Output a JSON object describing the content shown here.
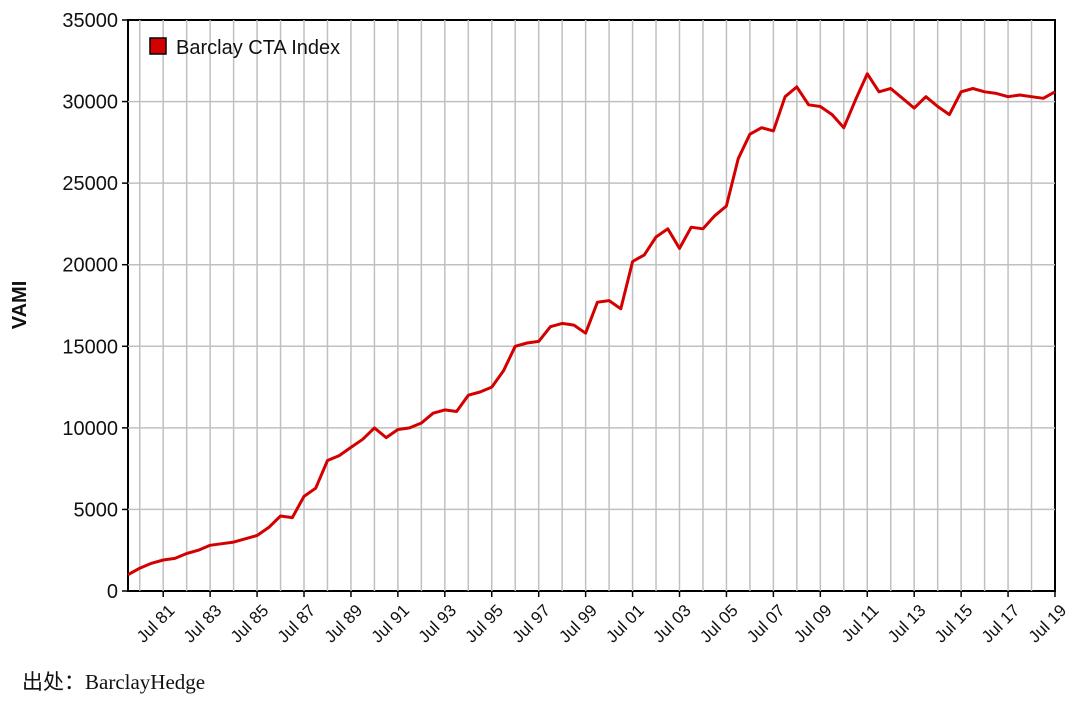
{
  "chart_data": {
    "type": "line",
    "ylabel": "VAMI",
    "ylim": [
      0,
      35000
    ],
    "yticks": [
      "0",
      "5000",
      "10000",
      "15000",
      "20000",
      "25000",
      "30000",
      "35000"
    ],
    "xticks": [
      "Jul 81",
      "Jul 83",
      "Jul 85",
      "Jul 87",
      "Jul 89",
      "Jul 91",
      "Jul 93",
      "Jul 95",
      "Jul 97",
      "Jul 99",
      "Jul 01",
      "Jul 03",
      "Jul 05",
      "Jul 07",
      "Jul 09",
      "Jul 11",
      "Jul 13",
      "Jul 15",
      "Jul 17",
      "Jul 19"
    ],
    "grid": true,
    "legend_position": "top-left",
    "series": [
      {
        "name": "Barclay CTA Index",
        "color": "#d40000",
        "x": [
          "1980-01",
          "1980-07",
          "1981-01",
          "1981-07",
          "1982-01",
          "1982-07",
          "1983-01",
          "1983-07",
          "1984-01",
          "1984-07",
          "1985-01",
          "1985-07",
          "1986-01",
          "1986-07",
          "1987-01",
          "1987-07",
          "1988-01",
          "1988-07",
          "1989-01",
          "1989-07",
          "1990-01",
          "1990-07",
          "1991-01",
          "1991-07",
          "1992-01",
          "1992-07",
          "1993-01",
          "1993-07",
          "1994-01",
          "1994-07",
          "1995-01",
          "1995-07",
          "1996-01",
          "1996-07",
          "1997-01",
          "1997-07",
          "1998-01",
          "1998-07",
          "1999-01",
          "1999-07",
          "2000-01",
          "2000-07",
          "2001-01",
          "2001-07",
          "2002-01",
          "2002-07",
          "2003-01",
          "2003-07",
          "2004-01",
          "2004-07",
          "2005-01",
          "2005-07",
          "2006-01",
          "2006-07",
          "2007-01",
          "2007-07",
          "2008-01",
          "2008-07",
          "2009-01",
          "2009-07",
          "2010-01",
          "2010-07",
          "2011-01",
          "2011-07",
          "2012-01",
          "2012-07",
          "2013-01",
          "2013-07",
          "2014-01",
          "2014-07",
          "2015-01",
          "2015-07",
          "2016-01",
          "2016-07",
          "2017-01",
          "2017-07",
          "2018-01",
          "2018-07",
          "2019-01",
          "2019-07"
        ],
        "values": [
          1000,
          1400,
          1700,
          1900,
          2000,
          2300,
          2500,
          2800,
          2900,
          3000,
          3200,
          3400,
          3900,
          4600,
          4500,
          5800,
          6300,
          8000,
          8300,
          8800,
          9300,
          10000,
          9400,
          9900,
          10000,
          10300,
          10900,
          11100,
          11000,
          12000,
          12200,
          12500,
          13500,
          15000,
          15200,
          15300,
          16200,
          16400,
          16300,
          15800,
          17700,
          17800,
          17300,
          20200,
          20600,
          21700,
          22200,
          21000,
          22300,
          22200,
          23000,
          23600,
          26500,
          28000,
          28400,
          28200,
          30300,
          30900,
          29800,
          29700,
          29200,
          28400,
          30100,
          31700,
          30600,
          30800,
          30200,
          29600,
          30300,
          29700,
          29200,
          30600,
          30800,
          30600,
          30500,
          30300,
          30400,
          30300,
          30200,
          30600
        ]
      }
    ]
  },
  "source_note": "出处：BarclayHedge"
}
